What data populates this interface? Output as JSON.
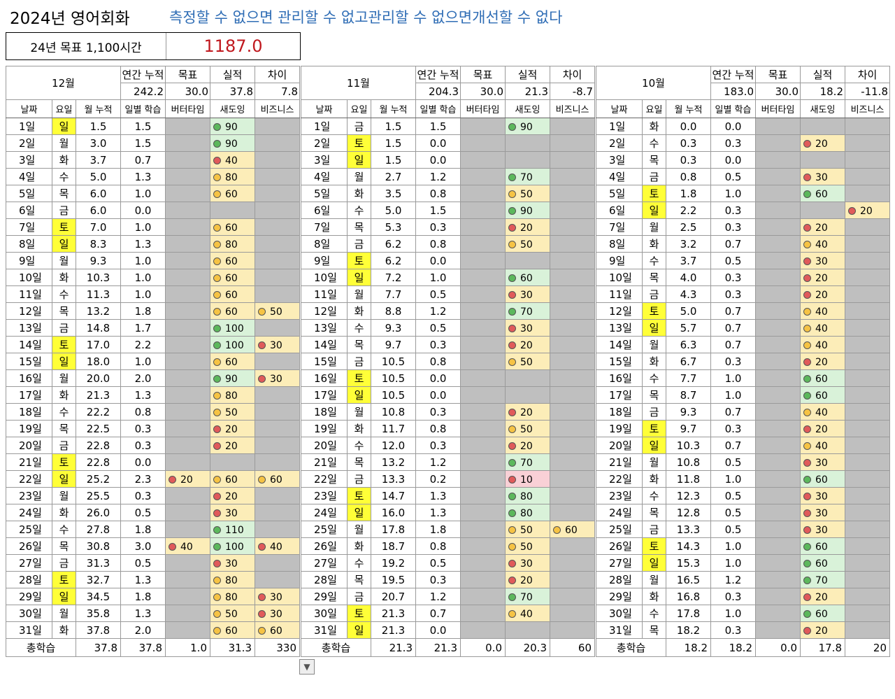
{
  "title": "2024년 영어회화",
  "slogan": "측정할 수 없으면 관리할 수 없고관리할 수 없으면개선할 수 없다",
  "goal": {
    "label": "24년 목표 1,100시간",
    "value": "1187.0"
  },
  "summary_headers": [
    "연간 누적",
    "목표",
    "실적",
    "차이"
  ],
  "column_headers": [
    "날짜",
    "요일",
    "월 누적",
    "일별 학습",
    "버터타임",
    "새도잉",
    "비즈니스"
  ],
  "total_label": "총학습",
  "colors": {
    "green": "#5cb85c",
    "yellow": "#f6c344",
    "red": "#e05a5a",
    "weekend": "#ffff38"
  },
  "months": [
    {
      "name": "12월",
      "summary": [
        "242.2",
        "30.0",
        "37.8",
        "7.8"
      ],
      "totals": [
        "37.8",
        "37.8",
        "1.0",
        "31.3",
        "330"
      ],
      "rows": [
        [
          "1일",
          "일",
          "1.5",
          "1.5",
          "",
          "g90",
          ""
        ],
        [
          "2일",
          "월",
          "3.0",
          "1.5",
          "",
          "g90",
          ""
        ],
        [
          "3일",
          "화",
          "3.7",
          "0.7",
          "",
          "r40",
          ""
        ],
        [
          "4일",
          "수",
          "5.0",
          "1.3",
          "",
          "y80",
          ""
        ],
        [
          "5일",
          "목",
          "6.0",
          "1.0",
          "",
          "y60",
          ""
        ],
        [
          "6일",
          "금",
          "6.0",
          "0.0",
          "",
          "",
          ""
        ],
        [
          "7일",
          "토",
          "7.0",
          "1.0",
          "",
          "y60",
          ""
        ],
        [
          "8일",
          "일",
          "8.3",
          "1.3",
          "",
          "y80",
          ""
        ],
        [
          "9일",
          "월",
          "9.3",
          "1.0",
          "",
          "y60",
          ""
        ],
        [
          "10일",
          "화",
          "10.3",
          "1.0",
          "",
          "y60",
          ""
        ],
        [
          "11일",
          "수",
          "11.3",
          "1.0",
          "",
          "y60",
          ""
        ],
        [
          "12일",
          "목",
          "13.2",
          "1.8",
          "",
          "y60",
          "y50"
        ],
        [
          "13일",
          "금",
          "14.8",
          "1.7",
          "",
          "g100",
          ""
        ],
        [
          "14일",
          "토",
          "17.0",
          "2.2",
          "",
          "g100",
          "r30"
        ],
        [
          "15일",
          "일",
          "18.0",
          "1.0",
          "",
          "y60",
          ""
        ],
        [
          "16일",
          "월",
          "20.0",
          "2.0",
          "",
          "g90",
          "r30"
        ],
        [
          "17일",
          "화",
          "21.3",
          "1.3",
          "",
          "y80",
          ""
        ],
        [
          "18일",
          "수",
          "22.2",
          "0.8",
          "",
          "y50",
          ""
        ],
        [
          "19일",
          "목",
          "22.5",
          "0.3",
          "",
          "r20",
          ""
        ],
        [
          "20일",
          "금",
          "22.8",
          "0.3",
          "",
          "r20",
          ""
        ],
        [
          "21일",
          "토",
          "22.8",
          "0.0",
          "",
          "",
          ""
        ],
        [
          "22일",
          "일",
          "25.2",
          "2.3",
          "r20",
          "y60",
          "y60"
        ],
        [
          "23일",
          "월",
          "25.5",
          "0.3",
          "",
          "r20",
          ""
        ],
        [
          "24일",
          "화",
          "26.0",
          "0.5",
          "",
          "r30",
          ""
        ],
        [
          "25일",
          "수",
          "27.8",
          "1.8",
          "",
          "g110",
          ""
        ],
        [
          "26일",
          "목",
          "30.8",
          "3.0",
          "r40",
          "g100",
          "r40"
        ],
        [
          "27일",
          "금",
          "31.3",
          "0.5",
          "",
          "r30",
          ""
        ],
        [
          "28일",
          "토",
          "32.7",
          "1.3",
          "",
          "y80",
          ""
        ],
        [
          "29일",
          "일",
          "34.5",
          "1.8",
          "",
          "y80",
          "r30"
        ],
        [
          "30일",
          "월",
          "35.8",
          "1.3",
          "",
          "y50",
          "r30"
        ],
        [
          "31일",
          "화",
          "37.8",
          "2.0",
          "",
          "y60",
          "y60"
        ]
      ]
    },
    {
      "name": "11월",
      "summary": [
        "204.3",
        "30.0",
        "21.3",
        "-8.7"
      ],
      "totals": [
        "21.3",
        "21.3",
        "0.0",
        "20.3",
        "60"
      ],
      "rows": [
        [
          "1일",
          "금",
          "1.5",
          "1.5",
          "",
          "g90",
          ""
        ],
        [
          "2일",
          "토",
          "1.5",
          "0.0",
          "",
          "",
          ""
        ],
        [
          "3일",
          "일",
          "1.5",
          "0.0",
          "",
          "",
          ""
        ],
        [
          "4일",
          "월",
          "2.7",
          "1.2",
          "",
          "g70",
          ""
        ],
        [
          "5일",
          "화",
          "3.5",
          "0.8",
          "",
          "y50",
          ""
        ],
        [
          "6일",
          "수",
          "5.0",
          "1.5",
          "",
          "g90",
          ""
        ],
        [
          "7일",
          "목",
          "5.3",
          "0.3",
          "",
          "r20",
          ""
        ],
        [
          "8일",
          "금",
          "6.2",
          "0.8",
          "",
          "y50",
          ""
        ],
        [
          "9일",
          "토",
          "6.2",
          "0.0",
          "",
          "",
          ""
        ],
        [
          "10일",
          "일",
          "7.2",
          "1.0",
          "",
          "g60",
          ""
        ],
        [
          "11일",
          "월",
          "7.7",
          "0.5",
          "",
          "r30",
          ""
        ],
        [
          "12일",
          "화",
          "8.8",
          "1.2",
          "",
          "g70",
          ""
        ],
        [
          "13일",
          "수",
          "9.3",
          "0.5",
          "",
          "r30",
          ""
        ],
        [
          "14일",
          "목",
          "9.7",
          "0.3",
          "",
          "r20",
          ""
        ],
        [
          "15일",
          "금",
          "10.5",
          "0.8",
          "",
          "y50",
          ""
        ],
        [
          "16일",
          "토",
          "10.5",
          "0.0",
          "",
          "",
          ""
        ],
        [
          "17일",
          "일",
          "10.5",
          "0.0",
          "",
          "",
          ""
        ],
        [
          "18일",
          "월",
          "10.8",
          "0.3",
          "",
          "r20",
          ""
        ],
        [
          "19일",
          "화",
          "11.7",
          "0.8",
          "",
          "y50",
          ""
        ],
        [
          "20일",
          "수",
          "12.0",
          "0.3",
          "",
          "r20",
          ""
        ],
        [
          "21일",
          "목",
          "13.2",
          "1.2",
          "",
          "g70",
          ""
        ],
        [
          "22일",
          "금",
          "13.3",
          "0.2",
          "",
          "p10",
          ""
        ],
        [
          "23일",
          "토",
          "14.7",
          "1.3",
          "",
          "g80",
          ""
        ],
        [
          "24일",
          "일",
          "16.0",
          "1.3",
          "",
          "g80",
          ""
        ],
        [
          "25일",
          "월",
          "17.8",
          "1.8",
          "",
          "y50",
          "y60"
        ],
        [
          "26일",
          "화",
          "18.7",
          "0.8",
          "",
          "y50",
          ""
        ],
        [
          "27일",
          "수",
          "19.2",
          "0.5",
          "",
          "r30",
          ""
        ],
        [
          "28일",
          "목",
          "19.5",
          "0.3",
          "",
          "r20",
          ""
        ],
        [
          "29일",
          "금",
          "20.7",
          "1.2",
          "",
          "g70",
          ""
        ],
        [
          "30일",
          "토",
          "21.3",
          "0.7",
          "",
          "y40",
          ""
        ],
        [
          "31일",
          "일",
          "21.3",
          "0.0",
          "",
          "",
          ""
        ]
      ]
    },
    {
      "name": "10월",
      "summary": [
        "183.0",
        "30.0",
        "18.2",
        "-11.8"
      ],
      "totals": [
        "18.2",
        "18.2",
        "0.0",
        "17.8",
        "20"
      ],
      "rows": [
        [
          "1일",
          "화",
          "0.0",
          "0.0",
          "",
          "",
          ""
        ],
        [
          "2일",
          "수",
          "0.3",
          "0.3",
          "",
          "r20",
          ""
        ],
        [
          "3일",
          "목",
          "0.3",
          "0.0",
          "",
          "",
          ""
        ],
        [
          "4일",
          "금",
          "0.8",
          "0.5",
          "",
          "r30",
          ""
        ],
        [
          "5일",
          "토",
          "1.8",
          "1.0",
          "",
          "g60",
          ""
        ],
        [
          "6일",
          "일",
          "2.2",
          "0.3",
          "",
          "",
          "r20"
        ],
        [
          "7일",
          "월",
          "2.5",
          "0.3",
          "",
          "r20",
          ""
        ],
        [
          "8일",
          "화",
          "3.2",
          "0.7",
          "",
          "y40",
          ""
        ],
        [
          "9일",
          "수",
          "3.7",
          "0.5",
          "",
          "r30",
          ""
        ],
        [
          "10일",
          "목",
          "4.0",
          "0.3",
          "",
          "r20",
          ""
        ],
        [
          "11일",
          "금",
          "4.3",
          "0.3",
          "",
          "r20",
          ""
        ],
        [
          "12일",
          "토",
          "5.0",
          "0.7",
          "",
          "y40",
          ""
        ],
        [
          "13일",
          "일",
          "5.7",
          "0.7",
          "",
          "y40",
          ""
        ],
        [
          "14일",
          "월",
          "6.3",
          "0.7",
          "",
          "y40",
          ""
        ],
        [
          "15일",
          "화",
          "6.7",
          "0.3",
          "",
          "r20",
          ""
        ],
        [
          "16일",
          "수",
          "7.7",
          "1.0",
          "",
          "g60",
          ""
        ],
        [
          "17일",
          "목",
          "8.7",
          "1.0",
          "",
          "g60",
          ""
        ],
        [
          "18일",
          "금",
          "9.3",
          "0.7",
          "",
          "y40",
          ""
        ],
        [
          "19일",
          "토",
          "9.7",
          "0.3",
          "",
          "r20",
          ""
        ],
        [
          "20일",
          "일",
          "10.3",
          "0.7",
          "",
          "y40",
          ""
        ],
        [
          "21일",
          "월",
          "10.8",
          "0.5",
          "",
          "r30",
          ""
        ],
        [
          "22일",
          "화",
          "11.8",
          "1.0",
          "",
          "g60",
          ""
        ],
        [
          "23일",
          "수",
          "12.3",
          "0.5",
          "",
          "r30",
          ""
        ],
        [
          "24일",
          "목",
          "12.8",
          "0.5",
          "",
          "r30",
          ""
        ],
        [
          "25일",
          "금",
          "13.3",
          "0.5",
          "",
          "r30",
          ""
        ],
        [
          "26일",
          "토",
          "14.3",
          "1.0",
          "",
          "g60",
          ""
        ],
        [
          "27일",
          "일",
          "15.3",
          "1.0",
          "",
          "g60",
          ""
        ],
        [
          "28일",
          "월",
          "16.5",
          "1.2",
          "",
          "g70",
          ""
        ],
        [
          "29일",
          "화",
          "16.8",
          "0.3",
          "",
          "r20",
          ""
        ],
        [
          "30일",
          "수",
          "17.8",
          "1.0",
          "",
          "g60",
          ""
        ],
        [
          "31일",
          "목",
          "18.2",
          "0.3",
          "",
          "r20",
          ""
        ]
      ]
    }
  ]
}
